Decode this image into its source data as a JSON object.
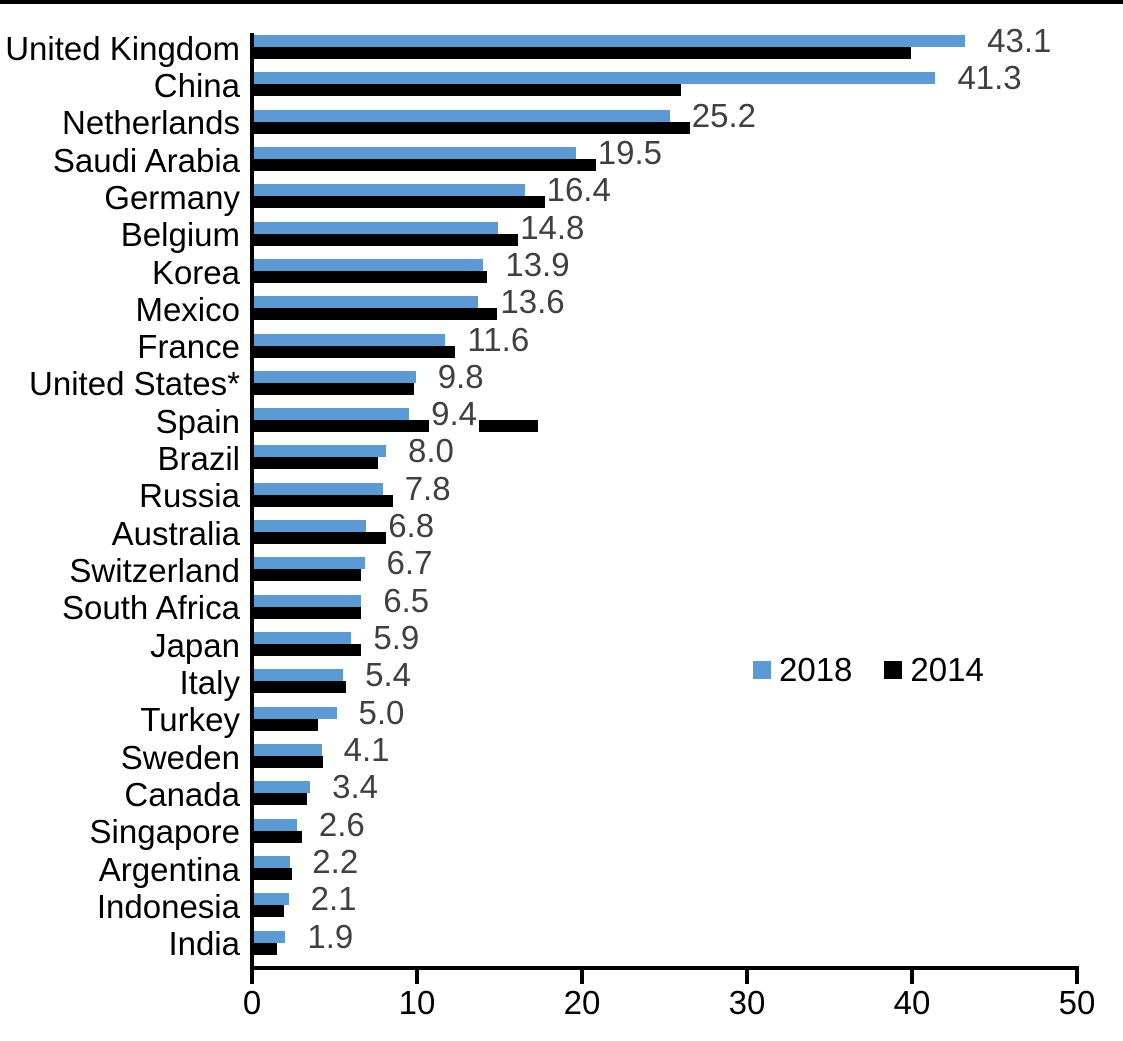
{
  "chart_data": {
    "type": "bar",
    "orientation": "horizontal",
    "title": "",
    "xlabel": "",
    "ylabel": "",
    "xlim": [
      0,
      50
    ],
    "x_ticks": [
      "0",
      "10",
      "20",
      "30",
      "40",
      "50"
    ],
    "grid": false,
    "legend_position": "inside-middle-right",
    "categories": [
      "United Kingdom",
      "China",
      "Netherlands",
      "Saudi Arabia",
      "Germany",
      "Belgium",
      "Korea",
      "Mexico",
      "France",
      "United States*",
      "Spain",
      "Brazil",
      "Russia",
      "Australia",
      "Switzerland",
      "South Africa",
      "Japan",
      "Italy",
      "Turkey",
      "Sweden",
      "Canada",
      "Singapore",
      "Argentina",
      "Indonesia",
      "India"
    ],
    "series": [
      {
        "name": "2018",
        "color": "#5B9BD5",
        "values": [
          43.1,
          41.3,
          25.2,
          19.5,
          16.4,
          14.8,
          13.9,
          13.6,
          11.6,
          9.8,
          9.4,
          8.0,
          7.8,
          6.8,
          6.7,
          6.5,
          5.9,
          5.4,
          5.0,
          4.1,
          3.4,
          2.6,
          2.2,
          2.1,
          1.9
        ],
        "data_labels": [
          "43.1",
          "41.3",
          "25.2",
          "19.5",
          "16.4",
          "14.8",
          "13.9",
          "13.6",
          "11.6",
          "9.8",
          "9.4",
          "8.0",
          "7.8",
          "6.8",
          "6.7",
          "6.5",
          "5.9",
          "5.4",
          "5.0",
          "4.1",
          "3.4",
          "2.6",
          "2.2",
          "2.1",
          "1.9"
        ],
        "data_label_color": "#404040"
      },
      {
        "name": "2014",
        "color": "#000000",
        "values": [
          39.8,
          25.9,
          26.4,
          21.4,
          17.9,
          17.2,
          14.1,
          14.7,
          12.2,
          9.7,
          17.2,
          7.5,
          8.4,
          9.6,
          6.5,
          6.5,
          6.5,
          5.6,
          3.9,
          4.2,
          3.2,
          2.9,
          2.3,
          1.8,
          1.4
        ],
        "data_labels": null
      }
    ]
  },
  "legend": {
    "items": [
      {
        "label": "2018",
        "color": "#5B9BD5"
      },
      {
        "label": "2014",
        "color": "#000000"
      }
    ]
  }
}
